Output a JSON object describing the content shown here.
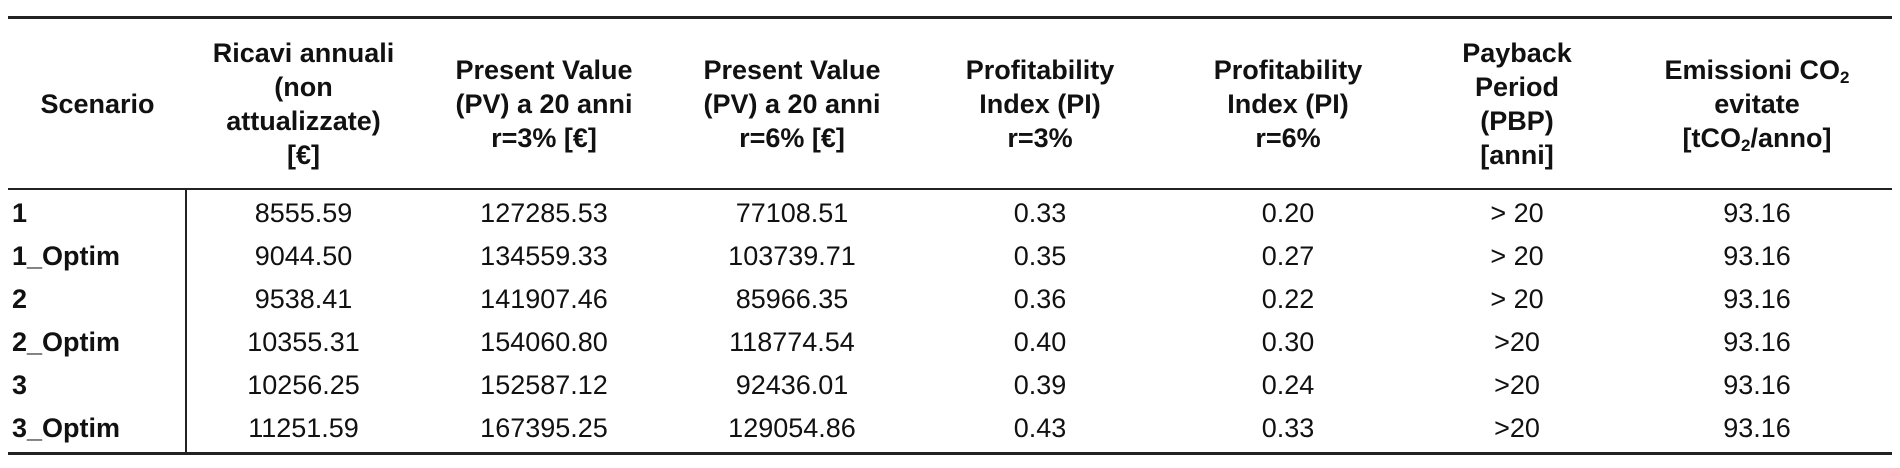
{
  "table": {
    "headers": [
      {
        "lines": [
          "Scenario"
        ]
      },
      {
        "lines": [
          "Ricavi annuali",
          "(non",
          "attualizzate)",
          "[€]"
        ]
      },
      {
        "lines": [
          "Present Value",
          "(PV) a 20 anni",
          "r=3% [€]"
        ]
      },
      {
        "lines": [
          "Present Value",
          "(PV) a 20 anni",
          "r=6% [€]"
        ]
      },
      {
        "lines": [
          "Profitability",
          "Index (PI)",
          "r=3%"
        ]
      },
      {
        "lines": [
          "Profitability",
          "Index (PI)",
          "r=6%"
        ]
      },
      {
        "lines": [
          "Payback",
          "Period",
          "(PBP)",
          "[anni]"
        ]
      },
      {
        "lines": [
          "Emissioni CO",
          "evitate",
          "[tCO",
          "/anno]"
        ],
        "subscript": "2"
      }
    ],
    "rows": [
      [
        "1",
        "8555.59",
        "127285.53",
        "77108.51",
        "0.33",
        "0.20",
        "> 20",
        "93.16"
      ],
      [
        "1_Optim",
        "9044.50",
        "134559.33",
        "103739.71",
        "0.35",
        "0.27",
        "> 20",
        "93.16"
      ],
      [
        "2",
        "9538.41",
        "141907.46",
        "85966.35",
        "0.36",
        "0.22",
        "> 20",
        "93.16"
      ],
      [
        "2_Optim",
        "10355.31",
        "154060.80",
        "118774.54",
        "0.40",
        "0.30",
        ">20",
        "93.16"
      ],
      [
        "3",
        "10256.25",
        "152587.12",
        "92436.01",
        "0.39",
        "0.24",
        ">20",
        "93.16"
      ],
      [
        "3_Optim",
        "11251.59",
        "167395.25",
        "129054.86",
        "0.43",
        "0.33",
        ">20",
        "93.16"
      ]
    ]
  }
}
